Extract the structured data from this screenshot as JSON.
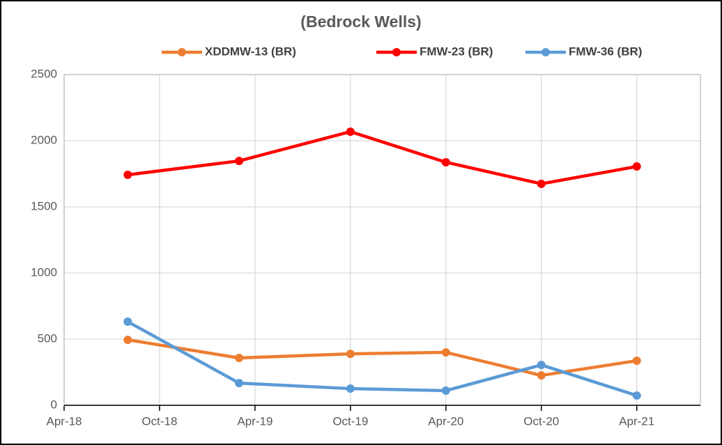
{
  "chart_data": {
    "type": "line",
    "title": "(Bedrock Wells)",
    "x": [
      "2018-08",
      "2019-03",
      "2019-10",
      "2020-04",
      "2020-10",
      "2021-04"
    ],
    "series": [
      {
        "name": "XDDMW-13 (BR)",
        "color": "#ed7d31",
        "values": [
          495,
          358,
          389,
          400,
          226,
          337
        ]
      },
      {
        "name": "FMW-23 (BR)",
        "color": "#ff0000",
        "values": [
          1742,
          1847,
          2068,
          1837,
          1674,
          1805
        ]
      },
      {
        "name": "FMW-36 (BR)",
        "color": "#5b9bd5",
        "values": [
          632,
          168,
          126,
          111,
          305,
          74
        ]
      }
    ],
    "xlim": [
      "2018-04",
      "2021-08"
    ],
    "xticks": [
      {
        "value": "2018-04",
        "label": "Apr-18"
      },
      {
        "value": "2018-10",
        "label": "Oct-18"
      },
      {
        "value": "2019-04",
        "label": "Apr-19"
      },
      {
        "value": "2019-10",
        "label": "Oct-19"
      },
      {
        "value": "2020-04",
        "label": "Apr-20"
      },
      {
        "value": "2020-10",
        "label": "Oct-20"
      },
      {
        "value": "2021-04",
        "label": "Apr-21"
      }
    ],
    "ylim": [
      0,
      2500
    ],
    "yticks": [
      0,
      500,
      1000,
      1500,
      2000,
      2500
    ],
    "grid": true,
    "legend": "top"
  }
}
